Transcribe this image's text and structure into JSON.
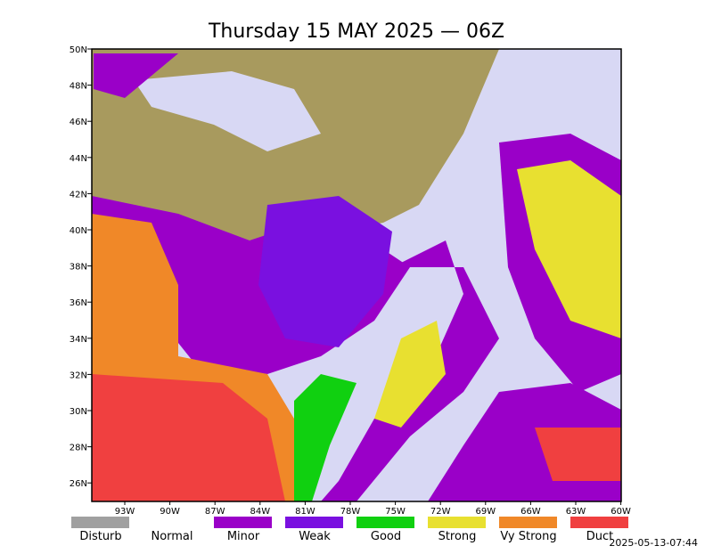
{
  "title": "Thursday 15 MAY 2025 — 06Z",
  "lat_labels": [
    "50N",
    "48N",
    "46N",
    "44N",
    "42N",
    "40N",
    "38N",
    "36N",
    "34N",
    "32N",
    "30N",
    "28N",
    "26N"
  ],
  "lon_labels": [
    "93W",
    "90W",
    "87W",
    "84W",
    "81W",
    "78W",
    "75W",
    "72W",
    "69W",
    "66W",
    "63W",
    "60W"
  ],
  "legend": [
    {
      "name": "Disturb",
      "color": "#a0a0a0"
    },
    {
      "name": "Normal",
      "color": "#ffffff"
    },
    {
      "name": "Minor",
      "color": "#9a00c8"
    },
    {
      "name": "Weak",
      "color": "#7a10e0"
    },
    {
      "name": "Good",
      "color": "#10d010"
    },
    {
      "name": "Strong",
      "color": "#e8e030"
    },
    {
      "name": "Vy Strong",
      "color": "#f08828"
    },
    {
      "name": "Duct",
      "color": "#f04040"
    }
  ],
  "timestamp": "2025-05-13-07:44"
}
